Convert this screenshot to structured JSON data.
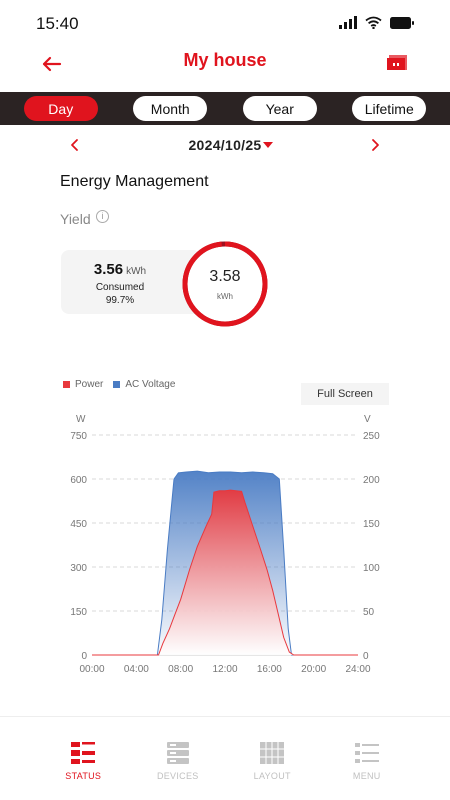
{
  "status_bar": {
    "time": "15:40"
  },
  "header": {
    "title": "My house"
  },
  "period_tabs": [
    {
      "label": "Day",
      "active": true
    },
    {
      "label": "Month",
      "active": false
    },
    {
      "label": "Year",
      "active": false
    },
    {
      "label": "Lifetime",
      "active": false
    }
  ],
  "date": {
    "value": "2024/10/25"
  },
  "energy": {
    "section_title": "Energy Management",
    "yield_label": "Yield",
    "info_glyph": "i",
    "consumed_value": "3.56",
    "consumed_unit": "kWh",
    "consumed_label": "Consumed",
    "consumed_pct": "99.7%",
    "consumed_fraction": 0.997,
    "yield_value": "3.58",
    "yield_unit": "kWh"
  },
  "chart_controls": {
    "fullscreen_label": "Full Screen"
  },
  "colors": {
    "accent": "#e0141e",
    "power": "#e8383d",
    "voltage": "#4a7cc4",
    "dark_bar": "#2b2323"
  },
  "chart_data": {
    "type": "area",
    "title": "",
    "x_ticks": [
      "00:00",
      "04:00",
      "08:00",
      "12:00",
      "16:00",
      "20:00",
      "24:00"
    ],
    "y_left_label": "W",
    "y_right_label": "V",
    "y_left_ticks": [
      "750",
      "600",
      "450",
      "300",
      "150",
      "0"
    ],
    "y_right_ticks": [
      "250",
      "200",
      "150",
      "100",
      "50",
      "0"
    ],
    "y_left_range": [
      0,
      750
    ],
    "y_right_range": [
      0,
      250
    ],
    "x_range_hours": [
      0,
      24
    ],
    "grid": true,
    "legend_placement": "top-left",
    "series": [
      {
        "name": "Power",
        "axis": "left",
        "color": "#e8383d",
        "points": [
          [
            0,
            0
          ],
          [
            6.0,
            0
          ],
          [
            6.4,
            40
          ],
          [
            7.0,
            90
          ],
          [
            7.5,
            140
          ],
          [
            8.0,
            190
          ],
          [
            8.8,
            290
          ],
          [
            9.5,
            370
          ],
          [
            10.3,
            440
          ],
          [
            10.8,
            480
          ],
          [
            11.0,
            555
          ],
          [
            11.5,
            560
          ],
          [
            12.0,
            560
          ],
          [
            12.5,
            562
          ],
          [
            13.0,
            560
          ],
          [
            13.5,
            558
          ],
          [
            13.8,
            520
          ],
          [
            14.5,
            440
          ],
          [
            15.2,
            360
          ],
          [
            15.8,
            290
          ],
          [
            16.3,
            220
          ],
          [
            16.8,
            140
          ],
          [
            17.3,
            60
          ],
          [
            17.8,
            10
          ],
          [
            18.2,
            0
          ],
          [
            24,
            0
          ]
        ]
      },
      {
        "name": "AC Voltage",
        "axis": "right",
        "color": "#4a7cc4",
        "points": [
          [
            0,
            0
          ],
          [
            5.9,
            0
          ],
          [
            6.3,
            40
          ],
          [
            6.8,
            120
          ],
          [
            7.4,
            200
          ],
          [
            7.8,
            207
          ],
          [
            8.5,
            208
          ],
          [
            9.5,
            209
          ],
          [
            10.5,
            207
          ],
          [
            11.5,
            208
          ],
          [
            12.5,
            208
          ],
          [
            13.5,
            207
          ],
          [
            14.5,
            208
          ],
          [
            15.5,
            207
          ],
          [
            16.3,
            206
          ],
          [
            16.9,
            200
          ],
          [
            17.3,
            120
          ],
          [
            17.7,
            30
          ],
          [
            18.0,
            0
          ],
          [
            24,
            0
          ]
        ]
      }
    ]
  },
  "bottom_nav": [
    {
      "label": "STATUS",
      "icon": "status-icon",
      "active": true
    },
    {
      "label": "DEVICES",
      "icon": "devices-icon",
      "active": false
    },
    {
      "label": "LAYOUT",
      "icon": "layout-icon",
      "active": false
    },
    {
      "label": "MENU",
      "icon": "menu-icon",
      "active": false
    }
  ]
}
